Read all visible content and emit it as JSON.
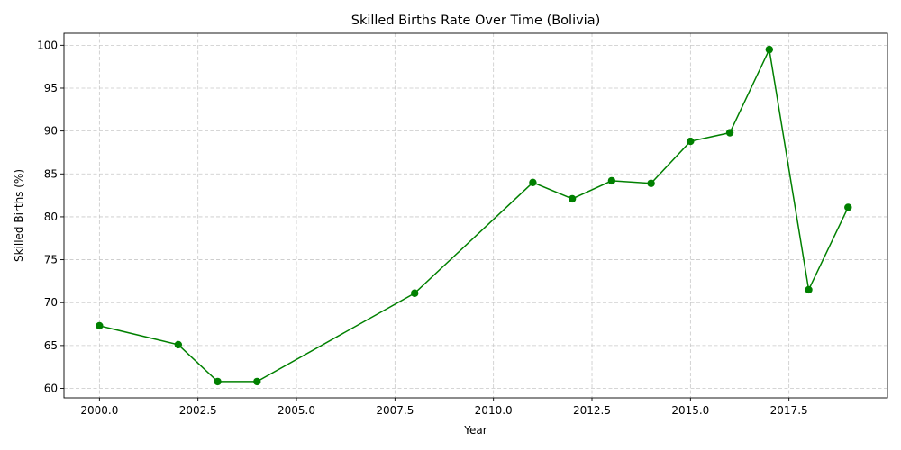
{
  "chart_data": {
    "type": "line",
    "title": "Skilled Births Rate Over Time (Bolivia)",
    "xlabel": "Year",
    "ylabel": "Skilled Births (%)",
    "xlim": [
      1999.1,
      2020.0
    ],
    "ylim": [
      58.9,
      101.4
    ],
    "xticks": [
      2000.0,
      2002.5,
      2005.0,
      2007.5,
      2010.0,
      2012.5,
      2015.0,
      2017.5
    ],
    "xtick_labels": [
      "2000.0",
      "2002.5",
      "2005.0",
      "2007.5",
      "2010.0",
      "2012.5",
      "2015.0",
      "2017.5"
    ],
    "yticks": [
      60,
      65,
      70,
      75,
      80,
      85,
      90,
      95,
      100
    ],
    "ytick_labels": [
      "60",
      "65",
      "70",
      "75",
      "80",
      "85",
      "90",
      "95",
      "100"
    ],
    "grid": true,
    "color": "#008000",
    "marker": "circle",
    "series": [
      {
        "x": [
          2000,
          2002,
          2003,
          2004,
          2008,
          2011,
          2012,
          2013,
          2014,
          2015,
          2016,
          2017,
          2018,
          2019
        ],
        "y": [
          67.3,
          65.1,
          60.8,
          60.8,
          71.1,
          84.0,
          82.1,
          84.2,
          83.9,
          88.8,
          89.8,
          99.5,
          71.5,
          81.1
        ]
      }
    ]
  }
}
